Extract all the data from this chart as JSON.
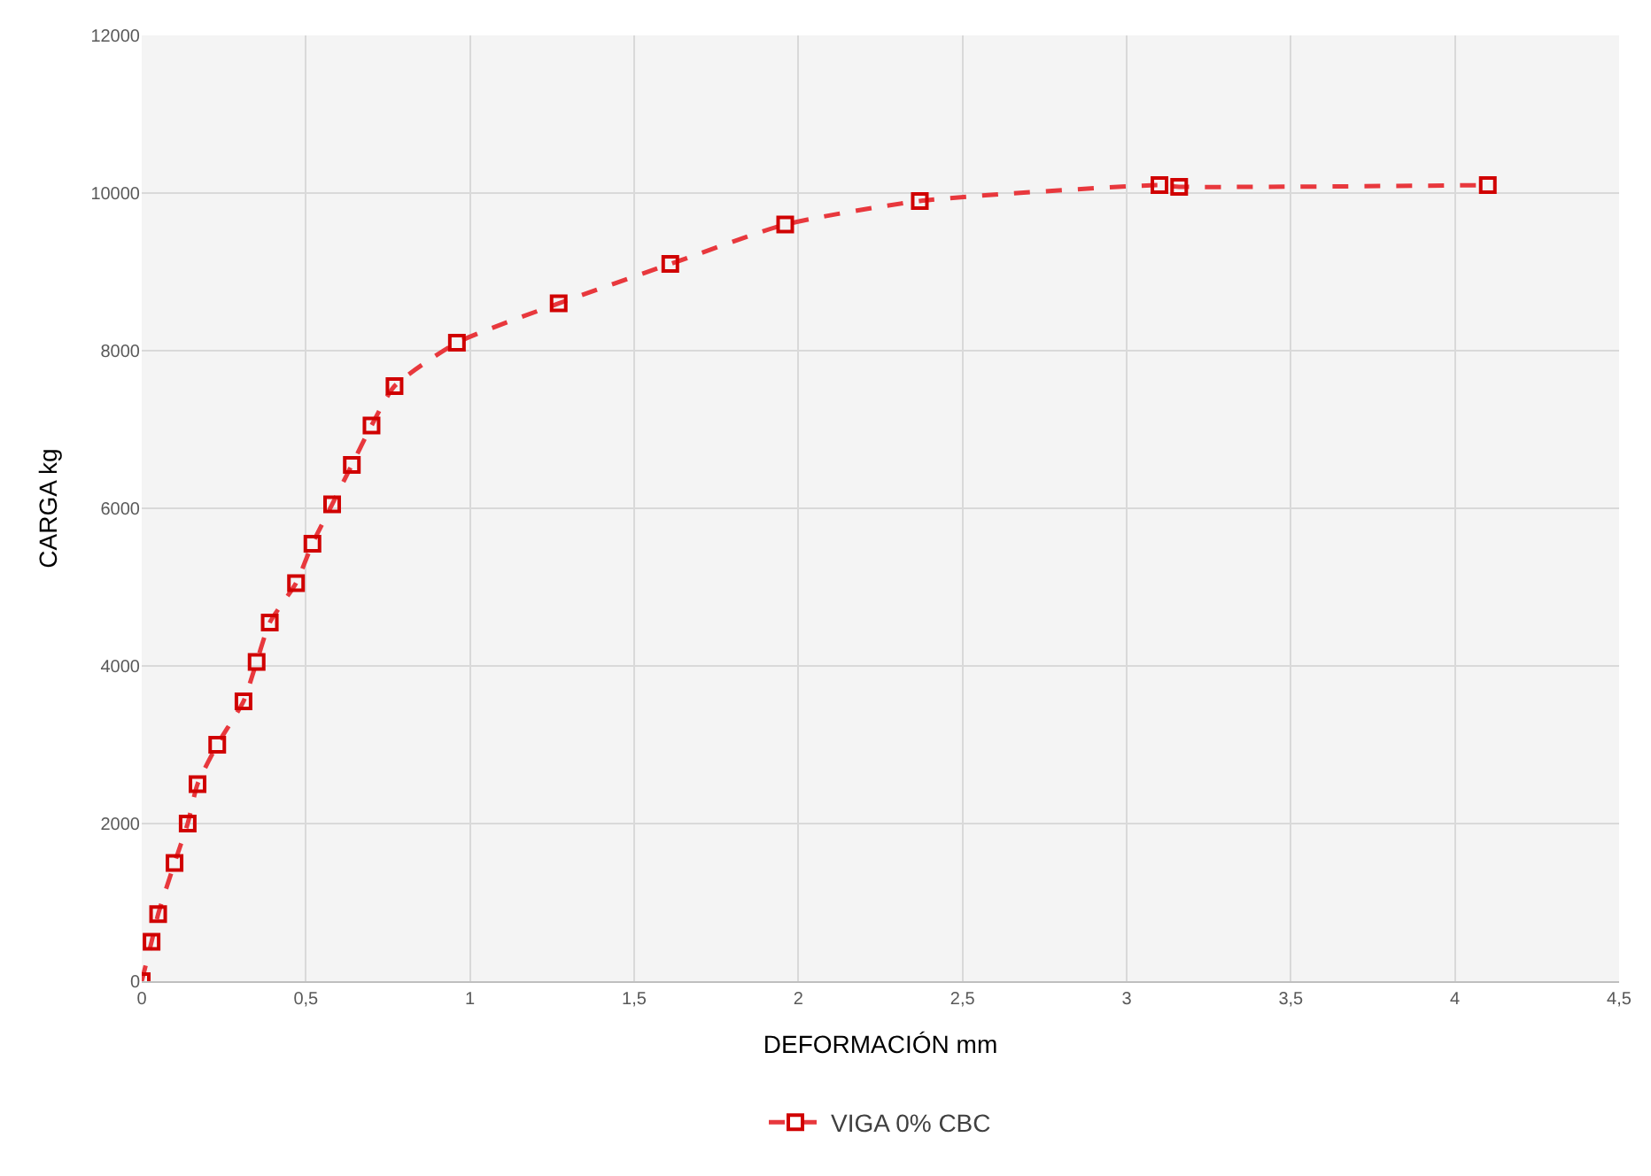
{
  "chart_data": {
    "type": "line",
    "xlabel": "DEFORMACIÓN mm",
    "ylabel": "CARGA kg",
    "x": [
      0,
      0.03,
      0.05,
      0.1,
      0.14,
      0.17,
      0.23,
      0.31,
      0.35,
      0.39,
      0.47,
      0.52,
      0.58,
      0.64,
      0.7,
      0.77,
      0.96,
      1.27,
      1.61,
      1.96,
      2.37,
      3.1,
      3.16,
      4.1
    ],
    "series": [
      {
        "name": "VIGA 0% CBC",
        "color": "#e8383d",
        "values": [
          0,
          500,
          850,
          1500,
          2000,
          2500,
          3000,
          3550,
          4050,
          4550,
          5050,
          5550,
          6050,
          6550,
          7050,
          7550,
          8100,
          8600,
          9100,
          9600,
          9900,
          10100,
          10080,
          10100
        ]
      }
    ],
    "xlim": [
      0,
      4.5
    ],
    "xticks": [
      {
        "value": 0,
        "label": "0"
      },
      {
        "value": 0.5,
        "label": "0,5"
      },
      {
        "value": 1,
        "label": "1"
      },
      {
        "value": 1.5,
        "label": "1,5"
      },
      {
        "value": 2,
        "label": "2"
      },
      {
        "value": 2.5,
        "label": "2,5"
      },
      {
        "value": 3,
        "label": "3"
      },
      {
        "value": 3.5,
        "label": "3,5"
      },
      {
        "value": 4,
        "label": "4"
      },
      {
        "value": 4.5,
        "label": "4,5"
      }
    ],
    "ylim": [
      0,
      12000
    ],
    "yticks": [
      0,
      2000,
      4000,
      6000,
      8000,
      10000,
      12000
    ],
    "grid": true,
    "legend": "bottom",
    "marker": "square",
    "line_style": "dashed"
  }
}
